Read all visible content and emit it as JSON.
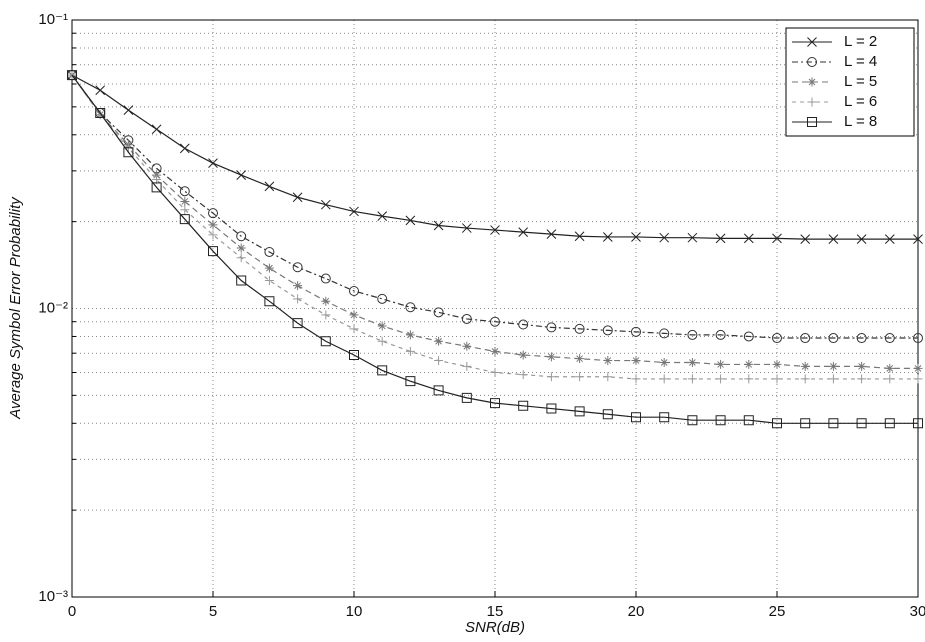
{
  "chart_data": {
    "type": "line",
    "xlabel": "SNR(dB)",
    "ylabel": "Average Symbol Error Probability",
    "x": [
      0,
      1,
      2,
      3,
      4,
      5,
      6,
      7,
      8,
      9,
      10,
      11,
      12,
      13,
      14,
      15,
      16,
      17,
      18,
      19,
      20,
      21,
      22,
      23,
      24,
      25,
      26,
      27,
      28,
      29,
      30
    ],
    "series": [
      {
        "name": "L = 2",
        "color": "#222222",
        "marker": "x",
        "dash": "",
        "values": [
          0.0644,
          0.0571,
          0.0487,
          0.0418,
          0.0359,
          0.0319,
          0.029,
          0.0265,
          0.0243,
          0.0229,
          0.0217,
          0.0209,
          0.0202,
          0.0194,
          0.019,
          0.0187,
          0.0184,
          0.0181,
          0.0178,
          0.0177,
          0.0177,
          0.0176,
          0.0176,
          0.0175,
          0.0175,
          0.0175,
          0.0174,
          0.0174,
          0.0174,
          0.0174,
          0.0174
        ]
      },
      {
        "name": "L = 4",
        "color": "#333333",
        "marker": "o",
        "dash": "6 3 2 3",
        "values": [
          0.0644,
          0.0476,
          0.0383,
          0.0306,
          0.0255,
          0.0214,
          0.0178,
          0.0157,
          0.0139,
          0.0127,
          0.0115,
          0.0108,
          0.0101,
          0.0097,
          0.0092,
          0.009,
          0.0088,
          0.0086,
          0.0085,
          0.0084,
          0.0083,
          0.0082,
          0.0081,
          0.0081,
          0.008,
          0.0079,
          0.0079,
          0.0079,
          0.0079,
          0.0079,
          0.0079
        ]
      },
      {
        "name": "L = 5",
        "color": "#777777",
        "marker": "*",
        "dash": "6 4",
        "values": [
          0.0644,
          0.047,
          0.037,
          0.029,
          0.0235,
          0.0195,
          0.0162,
          0.0138,
          0.012,
          0.0106,
          0.0095,
          0.0087,
          0.0081,
          0.0077,
          0.0074,
          0.0071,
          0.0069,
          0.0068,
          0.0067,
          0.0066,
          0.0066,
          0.0065,
          0.0065,
          0.0064,
          0.0064,
          0.0064,
          0.0063,
          0.0063,
          0.0063,
          0.0062,
          0.0062
        ]
      },
      {
        "name": "L = 6",
        "color": "#999999",
        "marker": "+",
        "dash": "4 4",
        "values": [
          0.0644,
          0.047,
          0.036,
          0.028,
          0.022,
          0.018,
          0.015,
          0.0125,
          0.0108,
          0.0095,
          0.0085,
          0.0077,
          0.0071,
          0.0066,
          0.0063,
          0.006,
          0.0059,
          0.0058,
          0.0058,
          0.0058,
          0.0057,
          0.0057,
          0.0057,
          0.0057,
          0.0057,
          0.0057,
          0.0057,
          0.0057,
          0.0057,
          0.0057,
          0.0057
        ]
      },
      {
        "name": "L = 8",
        "color": "#222222",
        "marker": "s",
        "dash": "",
        "values": [
          0.0644,
          0.0476,
          0.0348,
          0.0263,
          0.0204,
          0.0158,
          0.0125,
          0.0106,
          0.0089,
          0.0077,
          0.0069,
          0.0061,
          0.0056,
          0.0052,
          0.0049,
          0.0047,
          0.0046,
          0.0045,
          0.0044,
          0.0043,
          0.0042,
          0.0042,
          0.0041,
          0.0041,
          0.0041,
          0.004,
          0.004,
          0.004,
          0.004,
          0.004,
          0.004
        ]
      }
    ],
    "xlim": [
      0,
      30
    ],
    "xticks": [
      0,
      5,
      10,
      15,
      20,
      25,
      30
    ],
    "ylim": [
      0.001,
      0.1
    ],
    "log_y": true,
    "yticks": [
      {
        "value": 0.001,
        "label": "10⁻³"
      },
      {
        "value": 0.01,
        "label": "10⁻²"
      },
      {
        "value": 0.1,
        "label": "10⁻¹"
      }
    ],
    "minor_yticks": [
      0.002,
      0.003,
      0.004,
      0.005,
      0.006,
      0.007,
      0.008,
      0.009,
      0.02,
      0.03,
      0.04,
      0.05,
      0.06,
      0.07,
      0.08,
      0.09
    ],
    "grid": true,
    "legend": "upper-right"
  }
}
